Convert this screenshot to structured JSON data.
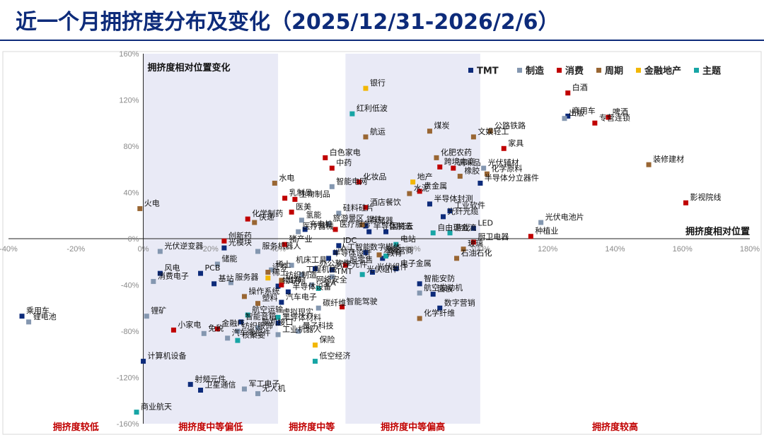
{
  "title": "近一个月拥挤度分布及变化（2025/12/31-2026/2/6）",
  "colors": {
    "TMT": "#0d2b7a",
    "制造": "#8497b0",
    "消费": "#c00000",
    "周期": "#996633",
    "金融地产": "#f2b705",
    "主题": "#17a5a5",
    "band": "#e9eaf6"
  },
  "chart_data": {
    "type": "scatter",
    "xlabel": "拥挤度相对位置",
    "ylabel": "拥挤度相对位置变化",
    "xlim": [
      -40,
      180
    ],
    "ylim": [
      -160,
      160
    ],
    "x_ticks": [
      "-40%",
      "-20%",
      "0%",
      "20%",
      "40%",
      "60%",
      "80%",
      "100%",
      "120%",
      "140%",
      "160%",
      "180%"
    ],
    "y_ticks": [
      "160%",
      "120%",
      "80%",
      "40%",
      "0%",
      "-40%",
      "-80%",
      "-120%",
      "-160%"
    ],
    "grid": false,
    "legend_position": "top-right",
    "zones": [
      {
        "label": "拥挤度较低",
        "x_range": [
          -40,
          0
        ]
      },
      {
        "label": "拥挤度中等偏低",
        "x_range": [
          0,
          40
        ]
      },
      {
        "label": "拥挤度中等",
        "x_range": [
          40,
          60
        ]
      },
      {
        "label": "拥挤度中等偏高",
        "x_range": [
          60,
          100
        ]
      },
      {
        "label": "拥挤度较高",
        "x_range": [
          100,
          180
        ]
      }
    ],
    "series": [
      {
        "name": "TMT",
        "points": [
          {
            "label": "计算机设备",
            "x": 0,
            "y": -106
          },
          {
            "label": "乘用车",
            "x": -36,
            "y": -67
          },
          {
            "label": "射频元件",
            "x": 14,
            "y": -126
          },
          {
            "label": "卫星通信",
            "x": 17,
            "y": -131
          },
          {
            "label": "光模块",
            "x": 24,
            "y": -8
          },
          {
            "label": "PCB",
            "x": 17,
            "y": -30
          },
          {
            "label": "基站",
            "x": 21,
            "y": -39
          },
          {
            "label": "智能音箱",
            "x": 29,
            "y": -72
          },
          {
            "label": "风电",
            "x": 5,
            "y": -30
          },
          {
            "label": "半导体材料",
            "x": 40,
            "y": -73
          },
          {
            "label": "IDC",
            "x": 58,
            "y": -6
          },
          {
            "label": "人工智能",
            "x": 57,
            "y": -12
          },
          {
            "label": "半导体设计",
            "x": 55,
            "y": -17
          },
          {
            "label": "光学元件",
            "x": 56,
            "y": -27
          },
          {
            "label": "办公软件",
            "x": 51,
            "y": -26
          },
          {
            "label": "物联网",
            "x": 40,
            "y": -41
          },
          {
            "label": "半导体设备",
            "x": 43,
            "y": -46
          },
          {
            "label": "汽车电子",
            "x": 41,
            "y": -55
          },
          {
            "label": "数字媒体",
            "x": 66,
            "y": -12
          },
          {
            "label": "光伏组件",
            "x": 68,
            "y": -29
          },
          {
            "label": "教育",
            "x": 71,
            "y": -17
          },
          {
            "label": "电子金属",
            "x": 75,
            "y": -26
          },
          {
            "label": "光纤光缆",
            "x": 89,
            "y": 19
          },
          {
            "label": "半导体封测",
            "x": 85,
            "y": 30
          },
          {
            "label": "工业软件",
            "x": 91,
            "y": 24
          },
          {
            "label": "LED",
            "x": 98,
            "y": 9
          },
          {
            "label": "半导体分立器件",
            "x": 100,
            "y": 48
          },
          {
            "label": "商用车",
            "x": 126,
            "y": 106
          },
          {
            "label": "面板",
            "x": 86,
            "y": -48
          },
          {
            "label": "智能安防",
            "x": 82,
            "y": -39
          },
          {
            "label": "数字营销",
            "x": 88,
            "y": -60
          },
          {
            "label": "存储器",
            "x": 66,
            "y": 11
          },
          {
            "label": "半导体制造",
            "x": 67,
            "y": 6
          },
          {
            "label": "国资云",
            "x": 72,
            "y": 6
          },
          {
            "label": "充电桩",
            "x": 48,
            "y": 8
          }
        ]
      },
      {
        "name": "制造",
        "points": [
          {
            "label": "消费电子",
            "x": 3,
            "y": -37
          },
          {
            "label": "锂电池",
            "x": -34,
            "y": -72
          },
          {
            "label": "锂矿",
            "x": 1,
            "y": -67
          },
          {
            "label": "免税",
            "x": 18,
            "y": -82
          },
          {
            "label": "汽车零部件",
            "x": 25,
            "y": -86
          },
          {
            "label": "军工电子",
            "x": 30,
            "y": -130
          },
          {
            "label": "无人机",
            "x": 34,
            "y": -134
          },
          {
            "label": "储能",
            "x": 22,
            "y": -22
          },
          {
            "label": "服务器",
            "x": 26,
            "y": -38
          },
          {
            "label": "服务机器人",
            "x": 34,
            "y": -11
          },
          {
            "label": "稀土",
            "x": 38,
            "y": -27
          },
          {
            "label": "机床工具",
            "x": 44,
            "y": -23
          },
          {
            "label": "工程机械",
            "x": 47,
            "y": -31
          },
          {
            "label": "网络安全",
            "x": 50,
            "y": -40
          },
          {
            "label": "医疗器械",
            "x": 46,
            "y": 6
          },
          {
            "label": "氢能",
            "x": 47,
            "y": 16
          },
          {
            "label": "硅料硅片",
            "x": 58,
            "y": 22
          },
          {
            "label": "旅游景区",
            "x": 55,
            "y": 13
          },
          {
            "label": "智能电网",
            "x": 56,
            "y": 45
          },
          {
            "label": "碳纤维",
            "x": 52,
            "y": -60
          },
          {
            "label": "工业机器人",
            "x": 40,
            "y": -83
          },
          {
            "label": "航空发动机",
            "x": 82,
            "y": -47
          },
          {
            "label": "光伏辅材",
            "x": 101,
            "y": 61
          },
          {
            "label": "光伏电池片",
            "x": 118,
            "y": 14
          },
          {
            "label": "出版",
            "x": 125,
            "y": 104
          },
          {
            "label": "光伏逆变器",
            "x": 5,
            "y": -11
          },
          {
            "label": "纺织服饰",
            "x": 28,
            "y": -80
          },
          {
            "label": "脑机接口",
            "x": 34,
            "y": -77
          },
          {
            "label": "量子科技",
            "x": 46,
            "y": -80
          },
          {
            "label": "TMT",
            "x": 56,
            "y": -33
          }
        ]
      },
      {
        "name": "消费",
        "points": [
          {
            "label": "化学制药",
            "x": 31,
            "y": 17
          },
          {
            "label": "创新药",
            "x": 24,
            "y": -2
          },
          {
            "label": "猪产业",
            "x": 42,
            "y": -5
          },
          {
            "label": "出海",
            "x": 41,
            "y": -40
          },
          {
            "label": "白色家电",
            "x": 54,
            "y": 70
          },
          {
            "label": "中药",
            "x": 56,
            "y": 61
          },
          {
            "label": "乳制品",
            "x": 42,
            "y": 35
          },
          {
            "label": "生物制品",
            "x": 45,
            "y": 34
          },
          {
            "label": "医美",
            "x": 44,
            "y": 23
          },
          {
            "label": "化妆品",
            "x": 64,
            "y": 49
          },
          {
            "label": "酒店餐饮",
            "x": 66,
            "y": 27
          },
          {
            "label": "医疗服务",
            "x": 57,
            "y": 8
          },
          {
            "label": "股零售",
            "x": 60,
            "y": -23
          },
          {
            "label": "白酒",
            "x": 126,
            "y": 126
          },
          {
            "label": "啤酒",
            "x": 138,
            "y": 105
          },
          {
            "label": "专营连锁",
            "x": 134,
            "y": 100
          },
          {
            "label": "家具",
            "x": 107,
            "y": 78
          },
          {
            "label": "跨境电商",
            "x": 88,
            "y": 62
          },
          {
            "label": "调味品",
            "x": 92,
            "y": 61
          },
          {
            "label": "贵金属",
            "x": 82,
            "y": 41
          },
          {
            "label": "影视院线",
            "x": 161,
            "y": 31
          },
          {
            "label": "种植业",
            "x": 115,
            "y": 2
          },
          {
            "label": "厨卫电器",
            "x": 98,
            "y": -3
          },
          {
            "label": "小家电",
            "x": 9,
            "y": -79
          },
          {
            "label": "金融IT",
            "x": 22,
            "y": -78
          },
          {
            "label": "智能驾驶",
            "x": 59,
            "y": -59
          }
        ]
      },
      {
        "name": "周期",
        "points": [
          {
            "label": "火电",
            "x": -1,
            "y": 26
          },
          {
            "label": "快递",
            "x": 33,
            "y": 14
          },
          {
            "label": "水电",
            "x": 39,
            "y": 48
          },
          {
            "label": "钢铁",
            "x": 65,
            "y": 12
          },
          {
            "label": "航运",
            "x": 66,
            "y": 88
          },
          {
            "label": "水泥",
            "x": 79,
            "y": 39
          },
          {
            "label": "煤炭",
            "x": 85,
            "y": 93
          },
          {
            "label": "文娱轻工",
            "x": 98,
            "y": 88
          },
          {
            "label": "公路铁路",
            "x": 103,
            "y": 93
          },
          {
            "label": "化肥农药",
            "x": 87,
            "y": 70
          },
          {
            "label": "橡胶",
            "x": 94,
            "y": 54
          },
          {
            "label": "化学原料",
            "x": 102,
            "y": 56
          },
          {
            "label": "装修建材",
            "x": 150,
            "y": 64
          },
          {
            "label": "玻璃",
            "x": 95,
            "y": -9
          },
          {
            "label": "石油石化",
            "x": 93,
            "y": -17
          },
          {
            "label": "造纸",
            "x": 70,
            "y": -14
          },
          {
            "label": "化学纤维",
            "x": 82,
            "y": -69
          },
          {
            "label": "塑料",
            "x": 34,
            "y": -56
          },
          {
            "label": "纺织制造",
            "x": 41,
            "y": -36
          },
          {
            "label": "证券",
            "x": 37,
            "y": -29
          },
          {
            "label": "操作系统",
            "x": 30,
            "y": -50
          }
        ]
      },
      {
        "name": "金融地产",
        "points": [
          {
            "label": "银行",
            "x": 66,
            "y": 130
          },
          {
            "label": "地产",
            "x": 80,
            "y": 49
          },
          {
            "label": "保险",
            "x": 51,
            "y": -92
          },
          {
            "label": "稀土",
            "x": 37,
            "y": -34
          }
        ]
      },
      {
        "name": "主题",
        "points": [
          {
            "label": "红利低波",
            "x": 62,
            "y": 108
          },
          {
            "label": "商业航天",
            "x": -2,
            "y": -150
          },
          {
            "label": "低空经济",
            "x": 51,
            "y": -106
          },
          {
            "label": "核聚变",
            "x": 28,
            "y": -88
          },
          {
            "label": "航空运输",
            "x": 31,
            "y": -66
          },
          {
            "label": "虚拟现实",
            "x": 40,
            "y": -68
          },
          {
            "label": "全A",
            "x": 52,
            "y": -43
          },
          {
            "label": "自由现金流",
            "x": 86,
            "y": 5
          },
          {
            "label": "游戏",
            "x": 91,
            "y": 5
          },
          {
            "label": "光伏组件",
            "x": 65,
            "y": -31
          },
          {
            "label": "运营商",
            "x": 72,
            "y": -15
          },
          {
            "label": "电站",
            "x": 75,
            "y": -5
          }
        ]
      }
    ]
  }
}
